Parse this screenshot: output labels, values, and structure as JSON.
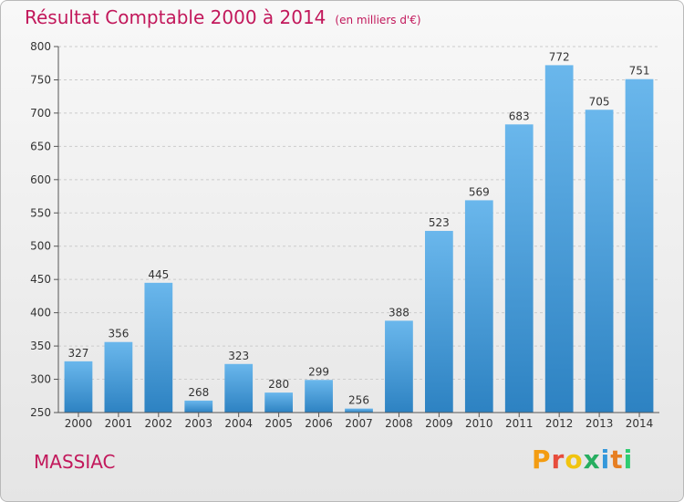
{
  "title": "Résultat Comptable 2000 à 2014",
  "subtitle": "(en milliers d'€)",
  "commune": "MASSIAC",
  "logo_text": "Proxiti",
  "logo_colors": [
    "#f39c12",
    "#e74c3c",
    "#f1c40f",
    "#27ae60",
    "#3498db",
    "#e67e22",
    "#2ecc71"
  ],
  "colors": {
    "bar_light": "#6ab7ec",
    "bar_dark": "#2d82c2",
    "title": "#c2185b"
  },
  "chart_data": {
    "type": "bar",
    "categories": [
      "2000",
      "2001",
      "2002",
      "2003",
      "2004",
      "2005",
      "2006",
      "2007",
      "2008",
      "2009",
      "2010",
      "2011",
      "2012",
      "2013",
      "2014"
    ],
    "values": [
      327,
      356,
      445,
      268,
      323,
      280,
      299,
      256,
      388,
      523,
      569,
      683,
      772,
      705,
      751
    ],
    "ylim": [
      250,
      800
    ],
    "yticks": [
      250,
      300,
      350,
      400,
      450,
      500,
      550,
      600,
      650,
      700,
      750,
      800
    ],
    "grid": true,
    "title": "Résultat Comptable 2000 à 2014",
    "subtitle": "(en milliers d'€)"
  }
}
